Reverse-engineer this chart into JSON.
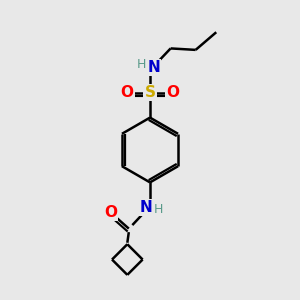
{
  "bg_color": "#e8e8e8",
  "atom_colors": {
    "C": "#000000",
    "H": "#5a9a8a",
    "N": "#0000cc",
    "O": "#ff0000",
    "S": "#ccaa00"
  },
  "bond_color": "#000000",
  "bond_width": 1.8,
  "figsize": [
    3.0,
    3.0
  ],
  "dpi": 100,
  "xlim": [
    0,
    10
  ],
  "ylim": [
    0,
    10
  ]
}
